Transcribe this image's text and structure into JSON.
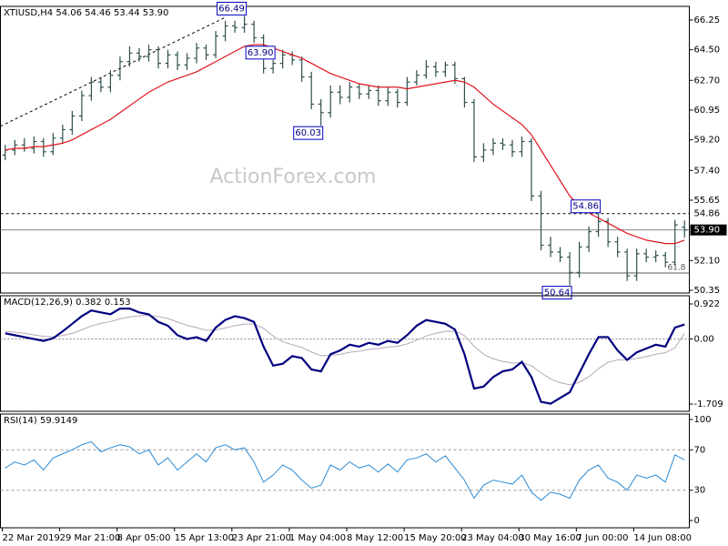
{
  "chart_data": [
    {
      "type": "ohlc",
      "title": "XTIUSD,H4  54.06 54.46 53.44 53.90",
      "watermark": "ActionForex.com",
      "categories": [
        "22 Mar 2019",
        null,
        null,
        null,
        null,
        null,
        "29 Mar 21:00",
        null,
        null,
        null,
        null,
        null,
        "8 Apr 05:00",
        null,
        null,
        null,
        null,
        null,
        "15 Apr 13:00",
        null,
        null,
        null,
        null,
        null,
        "23 Apr 21:00",
        null,
        null,
        null,
        null,
        null,
        "1 May 04:00",
        null,
        null,
        null,
        null,
        null,
        "8 May 12:00",
        null,
        null,
        null,
        null,
        null,
        "15 May 20:00",
        null,
        null,
        null,
        null,
        null,
        "23 May 04:00",
        null,
        null,
        null,
        null,
        null,
        "30 May 16:00",
        null,
        null,
        null,
        null,
        null,
        "7 Jun 00:00",
        null,
        null,
        null,
        null,
        null,
        "14 Jun 08:00",
        null,
        null,
        null,
        null,
        null
      ],
      "open": [
        58.3,
        58.6,
        58.9,
        58.7,
        59.1,
        58.5,
        59.3,
        59.8,
        60.6,
        61.8,
        62.6,
        62.3,
        63.0,
        63.8,
        64.3,
        64.1,
        64.5,
        63.7,
        64.2,
        63.6,
        64.0,
        64.6,
        64.2,
        65.3,
        65.9,
        65.8,
        66.0,
        65.2,
        63.4,
        63.7,
        64.2,
        63.9,
        62.9,
        61.3,
        60.8,
        62.0,
        61.7,
        62.3,
        61.9,
        62.1,
        61.5,
        62.0,
        61.4,
        62.6,
        63.0,
        63.5,
        63.2,
        63.6,
        62.8,
        61.4,
        58.2,
        58.6,
        59.0,
        58.9,
        58.5,
        59.1,
        55.9,
        53.0,
        52.6,
        52.3,
        51.4,
        52.9,
        53.8,
        54.4,
        53.2,
        52.6,
        51.2,
        52.5,
        52.3,
        52.4,
        52.0,
        54.06
      ],
      "high": [
        58.9,
        59.2,
        59.3,
        59.4,
        59.3,
        59.6,
        60.1,
        60.9,
        62.1,
        62.9,
        62.9,
        63.3,
        64.1,
        64.7,
        64.6,
        64.8,
        64.7,
        64.5,
        64.4,
        64.3,
        64.9,
        64.8,
        65.6,
        66.2,
        66.2,
        66.49,
        66.2,
        65.4,
        63.9,
        64.5,
        64.4,
        64.1,
        63.2,
        61.6,
        62.4,
        62.4,
        62.6,
        62.5,
        62.4,
        62.4,
        62.3,
        62.2,
        62.9,
        63.3,
        63.9,
        63.8,
        63.8,
        63.8,
        62.9,
        61.6,
        59.0,
        59.3,
        59.3,
        59.2,
        59.4,
        59.3,
        56.2,
        53.5,
        52.9,
        52.6,
        53.2,
        54.1,
        54.86,
        54.6,
        53.5,
        52.8,
        52.8,
        52.8,
        52.7,
        52.6,
        54.5,
        54.46
      ],
      "low": [
        58.0,
        58.3,
        58.5,
        58.4,
        58.2,
        58.3,
        59.0,
        59.5,
        60.3,
        61.5,
        62.0,
        62.0,
        62.7,
        63.5,
        63.8,
        63.8,
        63.4,
        63.4,
        63.3,
        63.3,
        63.7,
        63.9,
        64.0,
        65.0,
        65.5,
        65.5,
        64.9,
        63.1,
        63.1,
        63.4,
        63.6,
        62.6,
        61.0,
        60.03,
        60.5,
        61.3,
        61.4,
        61.6,
        61.6,
        61.2,
        61.2,
        61.1,
        61.2,
        62.4,
        62.8,
        62.9,
        62.9,
        62.5,
        61.1,
        57.9,
        57.9,
        58.3,
        58.6,
        58.2,
        58.2,
        55.6,
        52.7,
        52.3,
        52.0,
        50.64,
        51.1,
        52.6,
        53.5,
        52.9,
        52.3,
        50.9,
        50.9,
        52.0,
        52.0,
        51.7,
        51.8,
        53.44
      ],
      "close": [
        58.6,
        58.9,
        58.7,
        59.1,
        58.5,
        59.3,
        59.8,
        60.6,
        61.8,
        62.6,
        62.3,
        63.0,
        63.8,
        64.3,
        64.1,
        64.5,
        63.7,
        64.2,
        63.6,
        64.0,
        64.6,
        64.2,
        65.3,
        65.9,
        65.8,
        66.0,
        65.2,
        63.4,
        63.7,
        64.2,
        63.9,
        62.9,
        61.3,
        60.8,
        62.0,
        61.7,
        62.3,
        61.9,
        62.1,
        61.5,
        62.0,
        61.4,
        62.6,
        63.0,
        63.5,
        63.2,
        63.6,
        62.8,
        61.4,
        58.2,
        58.6,
        59.0,
        58.9,
        58.5,
        59.1,
        55.9,
        53.0,
        52.6,
        52.3,
        51.4,
        52.9,
        53.8,
        54.4,
        53.2,
        52.6,
        51.2,
        52.5,
        52.3,
        52.4,
        52.0,
        54.2,
        53.9
      ],
      "color": "#2f4f4f",
      "ma": {
        "color": "#e0141e",
        "values": [
          58.6,
          58.7,
          58.7,
          58.8,
          58.8,
          58.9,
          59.0,
          59.2,
          59.5,
          59.8,
          60.1,
          60.4,
          60.8,
          61.2,
          61.6,
          62.0,
          62.3,
          62.6,
          62.8,
          63.0,
          63.2,
          63.5,
          63.8,
          64.1,
          64.4,
          64.7,
          64.8,
          64.8,
          64.6,
          64.4,
          64.2,
          64.0,
          63.7,
          63.4,
          63.1,
          62.9,
          62.7,
          62.5,
          62.4,
          62.3,
          62.3,
          62.3,
          62.2,
          62.3,
          62.4,
          62.5,
          62.6,
          62.7,
          62.6,
          62.3,
          61.8,
          61.3,
          60.9,
          60.5,
          60.1,
          59.5,
          58.6,
          57.7,
          56.8,
          55.9,
          55.3,
          54.9,
          54.6,
          54.3,
          54.0,
          53.7,
          53.5,
          53.3,
          53.2,
          53.1,
          53.1,
          53.3
        ]
      },
      "ylim": [
        50.19,
        67.05
      ],
      "yticks": [
        50.35,
        {
          "value": 52.1,
          "label": "52.10"
        },
        55.65,
        {
          "value": 57.4,
          "label": "57.40"
        },
        {
          "value": 59.2,
          "label": "59.20"
        },
        60.95,
        {
          "value": 62.7,
          "label": "62.70"
        },
        {
          "value": 64.5,
          "label": "64.50"
        },
        66.25
      ],
      "levels": [
        {
          "value": 54.86,
          "label": "54.86",
          "style": "dashed"
        },
        {
          "value": 53.9,
          "label": "53.90",
          "style": "current"
        }
      ],
      "fib_level": {
        "value": 51.37,
        "label": "61.8"
      },
      "trendline": {
        "x": [
          0,
          23
        ],
        "values": [
          60.0,
          66.4
        ]
      },
      "extremes": [
        66.49,
        {
          "value": 63.9,
          "label": "63.90"
        },
        60.03,
        54.86,
        50.64
      ]
    },
    {
      "type": "macd",
      "title": "MACD(12,26,9) 0.382 0.153",
      "macd": {
        "color": "#000080",
        "values": [
          0.15,
          0.1,
          0.05,
          0.0,
          -0.05,
          0.02,
          0.2,
          0.4,
          0.6,
          0.75,
          0.7,
          0.65,
          0.8,
          0.8,
          0.7,
          0.65,
          0.45,
          0.35,
          0.1,
          0.0,
          0.05,
          -0.05,
          0.3,
          0.5,
          0.6,
          0.55,
          0.45,
          -0.2,
          -0.7,
          -0.65,
          -0.45,
          -0.5,
          -0.8,
          -0.85,
          -0.4,
          -0.3,
          -0.15,
          -0.2,
          -0.1,
          -0.15,
          -0.05,
          -0.1,
          0.1,
          0.35,
          0.5,
          0.45,
          0.4,
          0.25,
          -0.4,
          -1.3,
          -1.25,
          -1.0,
          -0.85,
          -0.8,
          -0.6,
          -1.0,
          -1.65,
          -1.7,
          -1.55,
          -1.4,
          -0.9,
          -0.4,
          0.05,
          0.05,
          -0.3,
          -0.55,
          -0.35,
          -0.25,
          -0.15,
          -0.2,
          0.3,
          0.382
        ]
      },
      "signal": {
        "color": "#b8a8b8",
        "values": [
          0.2,
          0.18,
          0.15,
          0.11,
          0.07,
          0.06,
          0.09,
          0.15,
          0.24,
          0.34,
          0.41,
          0.46,
          0.53,
          0.58,
          0.61,
          0.62,
          0.59,
          0.54,
          0.45,
          0.36,
          0.3,
          0.23,
          0.24,
          0.29,
          0.35,
          0.39,
          0.4,
          0.28,
          0.08,
          -0.07,
          -0.15,
          -0.22,
          -0.34,
          -0.44,
          -0.43,
          -0.4,
          -0.35,
          -0.32,
          -0.27,
          -0.25,
          -0.21,
          -0.19,
          -0.13,
          -0.03,
          0.08,
          0.15,
          0.2,
          0.21,
          0.09,
          -0.19,
          -0.4,
          -0.52,
          -0.59,
          -0.63,
          -0.62,
          -0.7,
          -0.89,
          -1.05,
          -1.15,
          -1.2,
          -1.14,
          -0.99,
          -0.78,
          -0.61,
          -0.55,
          -0.55,
          -0.51,
          -0.46,
          -0.4,
          -0.36,
          -0.23,
          0.153
        ]
      },
      "ylim": [
        -1.9,
        1.137
      ],
      "yticks": [
        -1.709,
        {
          "value": 0,
          "label": "0.00"
        },
        0.922
      ],
      "zero_line": true
    },
    {
      "type": "rsi",
      "title": "RSI(14) 59.9149",
      "color": "#2a8ad4",
      "values": [
        52,
        58,
        55,
        60,
        50,
        62,
        66,
        70,
        75,
        78,
        68,
        72,
        75,
        73,
        66,
        70,
        55,
        62,
        50,
        58,
        66,
        58,
        72,
        75,
        70,
        72,
        58,
        38,
        45,
        55,
        50,
        40,
        32,
        35,
        55,
        50,
        58,
        52,
        55,
        48,
        56,
        48,
        60,
        62,
        66,
        58,
        64,
        52,
        40,
        22,
        35,
        40,
        38,
        36,
        45,
        28,
        20,
        28,
        26,
        22,
        40,
        50,
        55,
        42,
        38,
        30,
        45,
        42,
        45,
        38,
        65,
        59.9149
      ],
      "ylim": [
        -7.2,
        105.4
      ],
      "yticks": [
        0,
        30,
        70,
        100
      ],
      "levels": [
        30,
        70
      ]
    }
  ]
}
